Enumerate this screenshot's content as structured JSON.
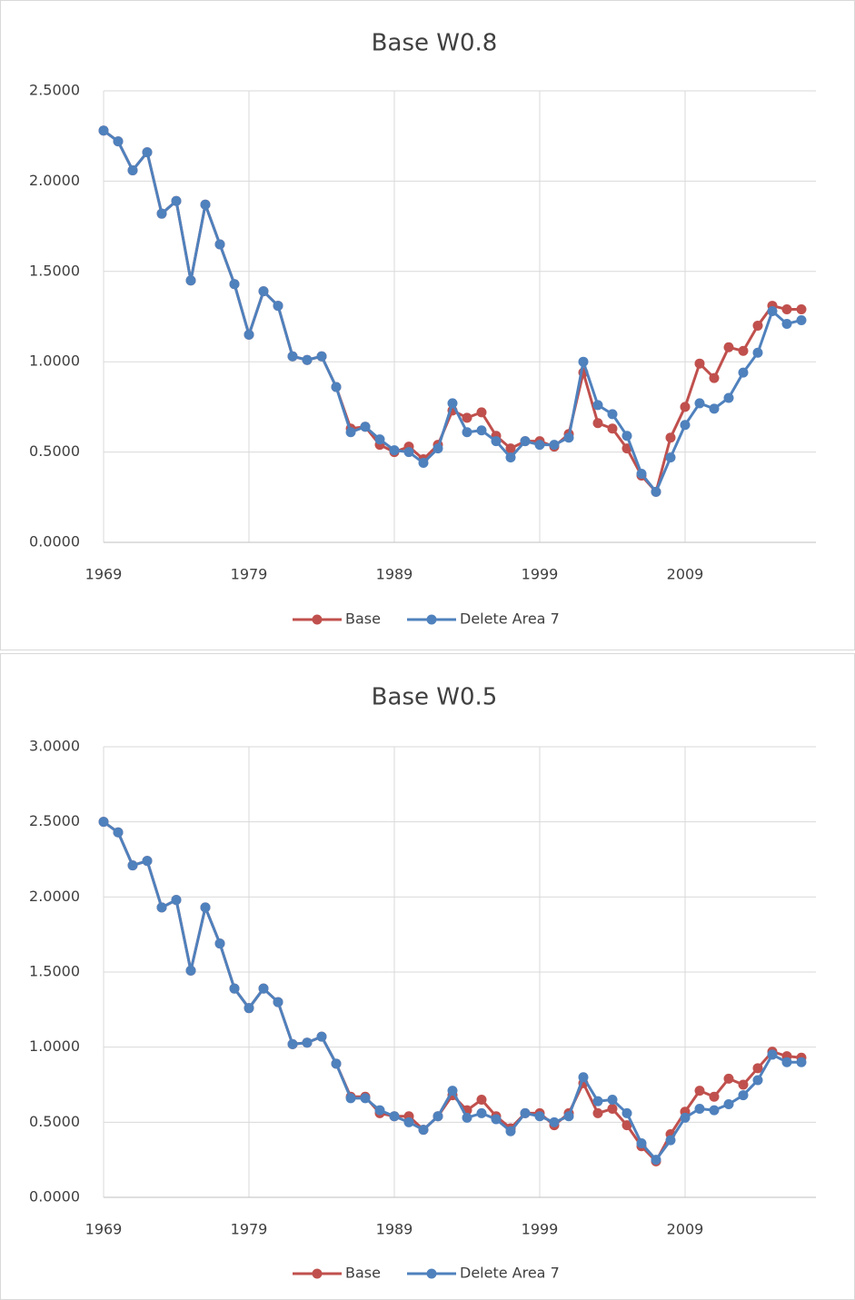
{
  "chart_data": [
    {
      "type": "line",
      "title": "Base W0.8",
      "x": [
        1969,
        1970,
        1971,
        1972,
        1973,
        1974,
        1975,
        1976,
        1977,
        1978,
        1979,
        1980,
        1981,
        1982,
        1983,
        1984,
        1985,
        1986,
        1987,
        1988,
        1989,
        1990,
        1991,
        1992,
        1993,
        1994,
        1995,
        1996,
        1997,
        1998,
        1999,
        2000,
        2001,
        2002,
        2003,
        2004,
        2005,
        2006,
        2007,
        2008,
        2009,
        2010,
        2011,
        2012,
        2013,
        2014,
        2015,
        2016,
        2017
      ],
      "series": [
        {
          "name": "Base",
          "color": "#c0504d",
          "values": [
            2.28,
            2.22,
            2.06,
            2.16,
            1.82,
            1.89,
            1.45,
            1.87,
            1.65,
            1.43,
            1.15,
            1.39,
            1.31,
            1.03,
            1.01,
            1.03,
            0.86,
            0.63,
            0.64,
            0.54,
            0.5,
            0.53,
            0.46,
            0.54,
            0.73,
            0.69,
            0.72,
            0.59,
            0.52,
            0.56,
            0.56,
            0.53,
            0.6,
            0.94,
            0.66,
            0.63,
            0.52,
            0.37,
            0.28,
            0.58,
            0.75,
            0.99,
            0.91,
            1.08,
            1.06,
            1.2,
            1.31,
            1.29,
            1.29
          ]
        },
        {
          "name": "Delete Area 7",
          "color": "#4f81bd",
          "values": [
            2.28,
            2.22,
            2.06,
            2.16,
            1.82,
            1.89,
            1.45,
            1.87,
            1.65,
            1.43,
            1.15,
            1.39,
            1.31,
            1.03,
            1.01,
            1.03,
            0.86,
            0.61,
            0.64,
            0.57,
            0.51,
            0.5,
            0.44,
            0.52,
            0.77,
            0.61,
            0.62,
            0.56,
            0.47,
            0.56,
            0.54,
            0.54,
            0.58,
            1.0,
            0.76,
            0.71,
            0.59,
            0.38,
            0.28,
            0.47,
            0.65,
            0.77,
            0.74,
            0.8,
            0.94,
            1.05,
            1.28,
            1.21,
            1.23
          ]
        }
      ],
      "xlim": [
        1969,
        2018
      ],
      "xticks": [
        1969,
        1979,
        1989,
        1999,
        2009
      ],
      "ylim": [
        0,
        2.5
      ],
      "yticks": [
        {
          "value": 0,
          "label": "0.0000"
        },
        {
          "value": 0.5,
          "label": "0.5000"
        },
        {
          "value": 1,
          "label": "1.0000"
        },
        {
          "value": 1.5,
          "label": "1.5000"
        },
        {
          "value": 2,
          "label": "2.0000"
        },
        {
          "value": 2.5,
          "label": "2.5000"
        }
      ],
      "grid": true,
      "legend": "bottom"
    },
    {
      "type": "line",
      "title": "Base W0.5",
      "x": [
        1969,
        1970,
        1971,
        1972,
        1973,
        1974,
        1975,
        1976,
        1977,
        1978,
        1979,
        1980,
        1981,
        1982,
        1983,
        1984,
        1985,
        1986,
        1987,
        1988,
        1989,
        1990,
        1991,
        1992,
        1993,
        1994,
        1995,
        1996,
        1997,
        1998,
        1999,
        2000,
        2001,
        2002,
        2003,
        2004,
        2005,
        2006,
        2007,
        2008,
        2009,
        2010,
        2011,
        2012,
        2013,
        2014,
        2015,
        2016,
        2017
      ],
      "series": [
        {
          "name": "Base",
          "color": "#c0504d",
          "values": [
            2.5,
            2.43,
            2.21,
            2.24,
            1.93,
            1.98,
            1.51,
            1.93,
            1.69,
            1.39,
            1.26,
            1.39,
            1.3,
            1.02,
            1.03,
            1.07,
            0.89,
            0.67,
            0.67,
            0.56,
            0.54,
            0.54,
            0.45,
            0.54,
            0.68,
            0.58,
            0.65,
            0.54,
            0.46,
            0.56,
            0.56,
            0.48,
            0.56,
            0.76,
            0.56,
            0.59,
            0.48,
            0.34,
            0.24,
            0.42,
            0.57,
            0.71,
            0.67,
            0.79,
            0.75,
            0.86,
            0.97,
            0.94,
            0.93
          ]
        },
        {
          "name": "Delete Area 7",
          "color": "#4f81bd",
          "values": [
            2.5,
            2.43,
            2.21,
            2.24,
            1.93,
            1.98,
            1.51,
            1.93,
            1.69,
            1.39,
            1.26,
            1.39,
            1.3,
            1.02,
            1.03,
            1.07,
            0.89,
            0.66,
            0.66,
            0.58,
            0.54,
            0.5,
            0.45,
            0.54,
            0.71,
            0.53,
            0.56,
            0.52,
            0.44,
            0.56,
            0.54,
            0.5,
            0.54,
            0.8,
            0.64,
            0.65,
            0.56,
            0.36,
            0.25,
            0.38,
            0.53,
            0.59,
            0.58,
            0.62,
            0.68,
            0.78,
            0.95,
            0.9,
            0.9
          ]
        }
      ],
      "xlim": [
        1969,
        2018
      ],
      "xticks": [
        1969,
        1979,
        1989,
        1999,
        2009
      ],
      "ylim": [
        0,
        3
      ],
      "yticks": [
        {
          "value": 0,
          "label": "0.0000"
        },
        {
          "value": 0.5,
          "label": "0.5000"
        },
        {
          "value": 1,
          "label": "1.0000"
        },
        {
          "value": 1.5,
          "label": "1.5000"
        },
        {
          "value": 2,
          "label": "2.0000"
        },
        {
          "value": 2.5,
          "label": "2.5000"
        },
        {
          "value": 3,
          "label": "3.0000"
        }
      ],
      "grid": true,
      "legend": "bottom"
    }
  ]
}
